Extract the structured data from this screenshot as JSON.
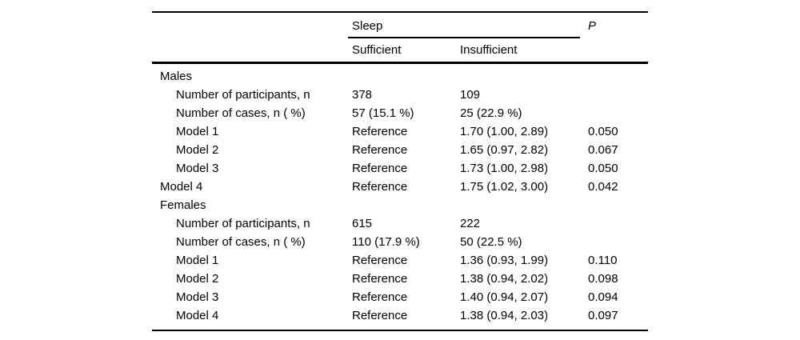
{
  "page": {
    "background": "#ffffff",
    "text_color": "#000000",
    "rule_color": "#000000"
  },
  "table": {
    "header": {
      "spanner_label": "Sleep",
      "col_sufficient": "Sufficient",
      "col_insufficient": "Insufficient",
      "p_label": "P"
    },
    "rows": [
      {
        "label": "Males",
        "indent": 0,
        "sufficient": "",
        "insufficient": "",
        "p": ""
      },
      {
        "label": "Number of participants, n",
        "indent": 1,
        "sufficient": "378",
        "insufficient": "109",
        "p": ""
      },
      {
        "label": "Number of cases, n ( %)",
        "indent": 1,
        "sufficient": "57 (15.1 %)",
        "insufficient": "25 (22.9 %)",
        "p": ""
      },
      {
        "label": "Model 1",
        "indent": 1,
        "sufficient": "Reference",
        "insufficient": "1.70 (1.00, 2.89)",
        "p": "0.050"
      },
      {
        "label": "Model 2",
        "indent": 1,
        "sufficient": "Reference",
        "insufficient": "1.65 (0.97, 2.82)",
        "p": "0.067"
      },
      {
        "label": "Model 3",
        "indent": 1,
        "sufficient": "Reference",
        "insufficient": "1.73 (1.00, 2.98)",
        "p": "0.050"
      },
      {
        "label": "Model 4",
        "indent": 0,
        "sufficient": "Reference",
        "insufficient": "1.75 (1.02, 3.00)",
        "p": "0.042"
      },
      {
        "label": "Females",
        "indent": 0,
        "sufficient": "",
        "insufficient": "",
        "p": ""
      },
      {
        "label": "Number of participants, n",
        "indent": 1,
        "sufficient": "615",
        "insufficient": "222",
        "p": ""
      },
      {
        "label": "Number of cases, n ( %)",
        "indent": 1,
        "sufficient": "110 (17.9 %)",
        "insufficient": "50 (22.5 %)",
        "p": ""
      },
      {
        "label": "Model 1",
        "indent": 1,
        "sufficient": "Reference",
        "insufficient": "1.36 (0.93, 1.99)",
        "p": "0.110"
      },
      {
        "label": "Model 2",
        "indent": 1,
        "sufficient": "Reference",
        "insufficient": "1.38 (0.94, 2.02)",
        "p": "0.098"
      },
      {
        "label": "Model 3",
        "indent": 1,
        "sufficient": "Reference",
        "insufficient": "1.40 (0.94, 2.07)",
        "p": "0.094"
      },
      {
        "label": "Model 4",
        "indent": 1,
        "sufficient": "Reference",
        "insufficient": "1.38 (0.94, 2.03)",
        "p": "0.097"
      }
    ]
  },
  "chart_data": {
    "type": "table",
    "title": "",
    "column_groups": [
      {
        "group": "Sleep",
        "columns": [
          "Sufficient",
          "Insufficient"
        ]
      },
      {
        "group": "",
        "columns": [
          "P"
        ]
      }
    ],
    "sections": [
      {
        "name": "Males",
        "rows": [
          [
            "Number of participants, n",
            "378",
            "109",
            ""
          ],
          [
            "Number of cases, n ( %)",
            "57 (15.1 %)",
            "25 (22.9 %)",
            ""
          ],
          [
            "Model 1",
            "Reference",
            "1.70 (1.00, 2.89)",
            "0.050"
          ],
          [
            "Model 2",
            "Reference",
            "1.65 (0.97, 2.82)",
            "0.067"
          ],
          [
            "Model 3",
            "Reference",
            "1.73 (1.00, 2.98)",
            "0.050"
          ],
          [
            "Model 4",
            "Reference",
            "1.75 (1.02, 3.00)",
            "0.042"
          ]
        ]
      },
      {
        "name": "Females",
        "rows": [
          [
            "Number of participants, n",
            "615",
            "222",
            ""
          ],
          [
            "Number of cases, n ( %)",
            "110 (17.9 %)",
            "50 (22.5 %)",
            ""
          ],
          [
            "Model 1",
            "Reference",
            "1.36 (0.93, 1.99)",
            "0.110"
          ],
          [
            "Model 2",
            "Reference",
            "1.38 (0.94, 2.02)",
            "0.098"
          ],
          [
            "Model 3",
            "Reference",
            "1.40 (0.94, 2.07)",
            "0.094"
          ],
          [
            "Model 4",
            "Reference",
            "1.38 (0.94, 2.03)",
            "0.097"
          ]
        ]
      }
    ]
  }
}
